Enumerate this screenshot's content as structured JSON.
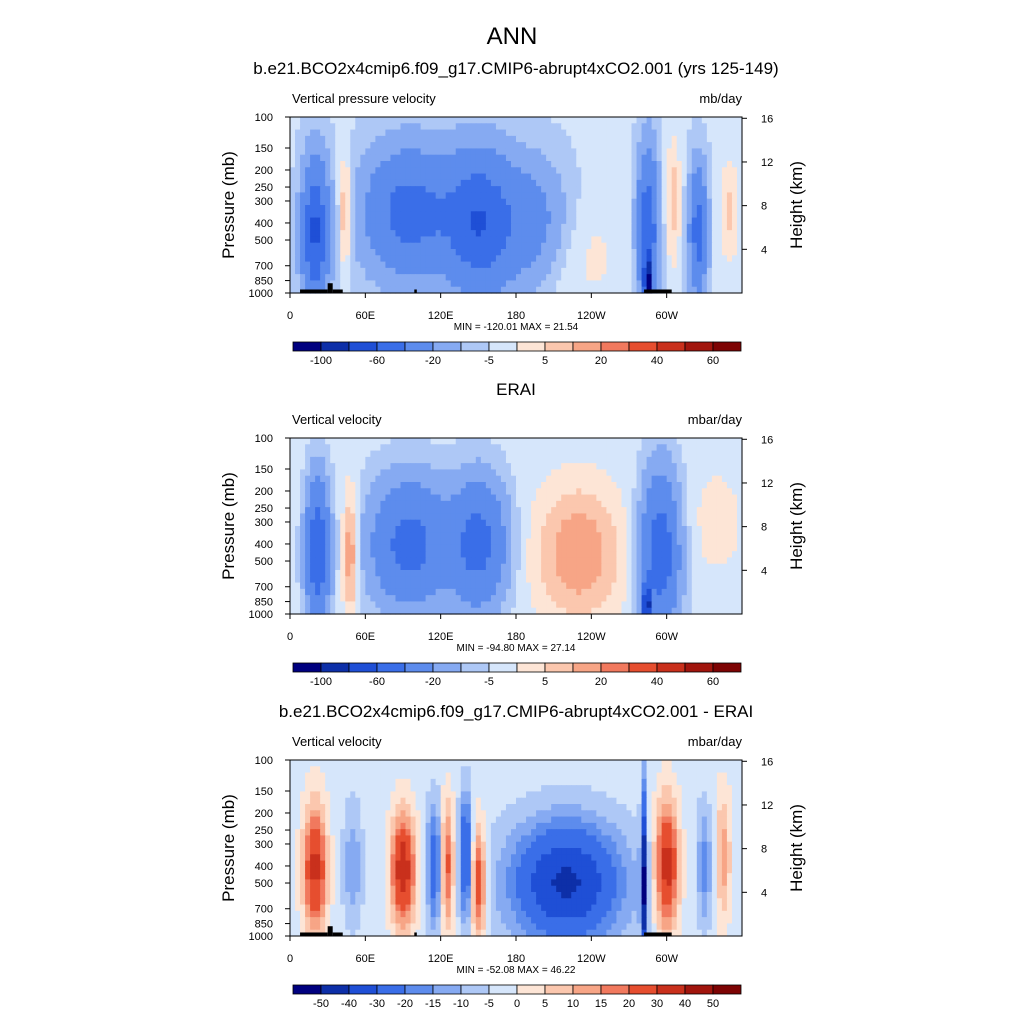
{
  "figure": {
    "title": "ANN",
    "pressure_ticks": [
      100,
      150,
      200,
      250,
      300,
      400,
      500,
      700,
      850,
      1000
    ],
    "height_ticks": [
      4,
      8,
      12,
      16
    ],
    "lon_ticks": [
      {
        "lon": 0,
        "label": "0"
      },
      {
        "lon": 60,
        "label": "60E"
      },
      {
        "lon": 120,
        "label": "120E"
      },
      {
        "lon": 180,
        "label": "180"
      },
      {
        "lon": 240,
        "label": "120W"
      },
      {
        "lon": 300,
        "label": "60W"
      }
    ],
    "lon_range": [
      0,
      360
    ],
    "pressure_range": [
      100,
      1000
    ],
    "colors": {
      "full": [
        "#00007f",
        "#0d2fa8",
        "#1f4fd6",
        "#3a6ee8",
        "#5d8ced",
        "#86aaf2",
        "#aec8f6",
        "#d6e6fb",
        "#fde5d6",
        "#fbc7ae",
        "#f7a586",
        "#f1795e",
        "#e64e2f",
        "#c9301c",
        "#a1150d",
        "#7d0303"
      ],
      "diff": [
        "#00007f",
        "#0d2fa8",
        "#1f4fd6",
        "#3a6ee8",
        "#5d8ced",
        "#86aaf2",
        "#aec8f6",
        "#d6e6fb",
        "#fde5d6",
        "#fbc7ae",
        "#f7a586",
        "#f1795e",
        "#e64e2f",
        "#c9301c",
        "#a1150d",
        "#7d0303"
      ]
    }
  },
  "chart_data": [
    {
      "type": "heatmap",
      "title": "b.e21.BCO2x4cmip6.f09_g17.CMIP6-abrupt4xCO2.001 (yrs 125-149)",
      "left_label": "Vertical pressure velocity",
      "right_label": "mb/day",
      "ylabel": "Pressure (mb)",
      "ylabel_right": "Height (km)",
      "stats": "MIN = -120.01  MAX =  21.54",
      "colorbar_labels": [
        "-100",
        "-60",
        "-20",
        "-5",
        "5",
        "20",
        "40",
        "60"
      ],
      "palette": "full",
      "min": -120.01,
      "max": 21.54,
      "mode": "model",
      "terrain_blocks": [
        [
          8,
          30
        ],
        [
          30,
          34
        ],
        [
          34,
          42
        ],
        [
          99,
          101
        ],
        [
          282,
          304
        ]
      ]
    },
    {
      "type": "heatmap",
      "title": "ERAI",
      "left_label": "Vertical velocity",
      "right_label": "mbar/day",
      "ylabel": "Pressure (mb)",
      "ylabel_right": "Height (km)",
      "stats": "MIN = -94.80  MAX =  27.14",
      "colorbar_labels": [
        "-100",
        "-60",
        "-20",
        "-5",
        "5",
        "20",
        "40",
        "60"
      ],
      "palette": "full",
      "min": -94.8,
      "max": 27.14,
      "mode": "obs",
      "terrain_blocks": []
    },
    {
      "type": "heatmap",
      "title": "b.e21.BCO2x4cmip6.f09_g17.CMIP6-abrupt4xCO2.001 - ERAI",
      "left_label": "Vertical velocity",
      "right_label": "mbar/day",
      "ylabel": "Pressure (mb)",
      "ylabel_right": "Height (km)",
      "stats": "MIN = -52.08  MAX =  46.22",
      "colorbar_labels": [
        "-50",
        "-40",
        "-30",
        "-20",
        "-15",
        "-10",
        "-5",
        "0",
        "5",
        "10",
        "15",
        "20",
        "30",
        "40",
        "50"
      ],
      "palette": "diff",
      "min": -52.08,
      "max": 46.22,
      "mode": "diff",
      "terrain_blocks": [
        [
          8,
          30
        ],
        [
          30,
          34
        ],
        [
          34,
          42
        ],
        [
          99,
          101
        ],
        [
          282,
          304
        ]
      ]
    }
  ]
}
